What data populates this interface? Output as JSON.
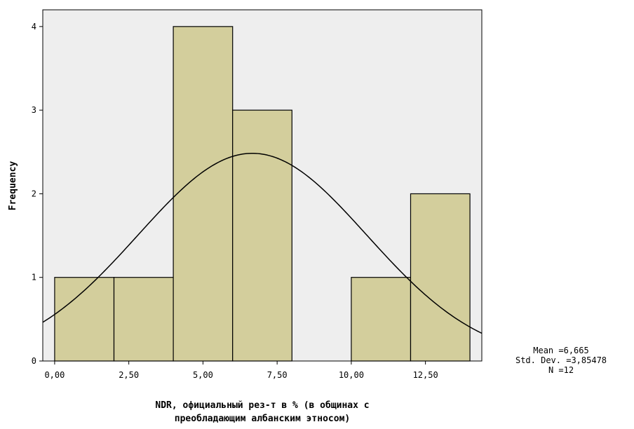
{
  "chart_data": {
    "type": "bar",
    "subtype": "histogram",
    "ylabel": "Frequency",
    "xlabel_line1": "NDR, официальный рез-т в % (в общинах с",
    "xlabel_line2": "преобладающим албанским этносом)",
    "bins": [
      {
        "x0": 0,
        "x1": 2,
        "count": 1
      },
      {
        "x0": 2,
        "x1": 4,
        "count": 1
      },
      {
        "x0": 4,
        "x1": 6,
        "count": 4
      },
      {
        "x0": 6,
        "x1": 8,
        "count": 3
      },
      {
        "x0": 8,
        "x1": 10,
        "count": 0
      },
      {
        "x0": 10,
        "x1": 12,
        "count": 1
      },
      {
        "x0": 12,
        "x1": 14,
        "count": 2
      }
    ],
    "x_ticks": [
      "0,00",
      "2,50",
      "5,00",
      "7,50",
      "10,00",
      "12,50"
    ],
    "x_tick_values": [
      0,
      2.5,
      5,
      7.5,
      10,
      12.5
    ],
    "y_ticks": [
      "0",
      "1",
      "2",
      "3",
      "4"
    ],
    "y_tick_values": [
      0,
      1,
      2,
      3,
      4
    ],
    "xlim": [
      -0.4,
      14.4
    ],
    "ylim": [
      0,
      4.2
    ],
    "normal_curve": {
      "mean": 6.665,
      "sd": 3.85478,
      "n": 12,
      "bin_width": 2
    },
    "colors": {
      "bar_fill": "#d3ce9c",
      "plot_bg": "#eeeeee",
      "bar_stroke": "#000000"
    }
  },
  "stats": {
    "mean": "Mean =6,665",
    "std_dev": "Std. Dev. =3,85478",
    "n": "N =12"
  }
}
